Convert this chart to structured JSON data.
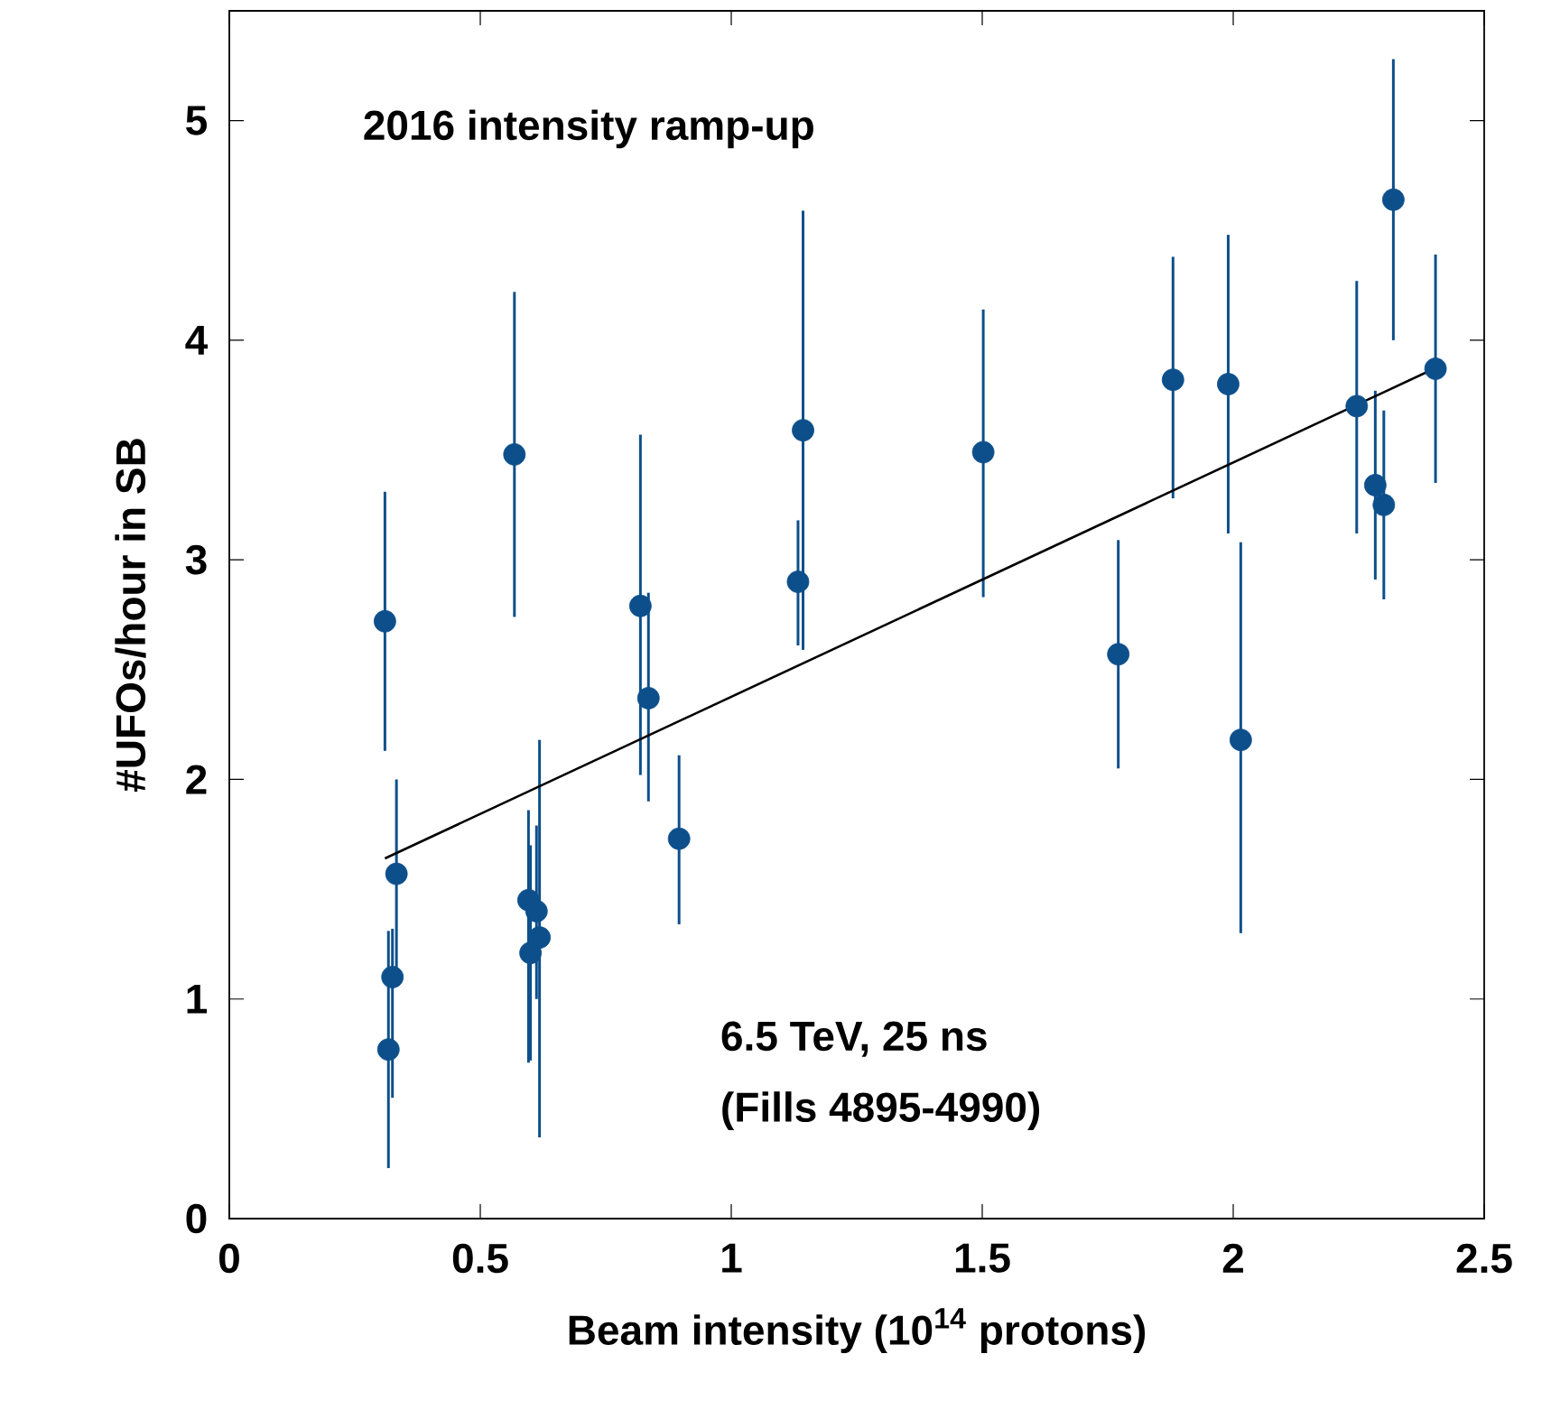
{
  "chart_data": {
    "type": "scatter",
    "xlabel": "Beam intensity (10$^{14}$ protons)",
    "ylabel": "#UFOs/hour in SB",
    "annotations": [
      "2016 intensity ramp-up",
      "6.5 TeV, 25 ns",
      "(Fills 4895-4990)"
    ],
    "xlim": [
      0,
      2.5
    ],
    "ylim": [
      0,
      5.5
    ],
    "xticks": [
      0,
      0.5,
      1,
      1.5,
      2,
      2.5
    ],
    "yticks": [
      0,
      1,
      2,
      3,
      4,
      5
    ],
    "grid": false,
    "series": [
      {
        "marker": "circle",
        "color": "#0d4f8b",
        "x": [
          0.31,
          0.333,
          0.325,
          0.317,
          0.568,
          0.596,
          0.6,
          0.612,
          0.618,
          0.819,
          0.835,
          0.896,
          1.133,
          1.143,
          1.502,
          1.771,
          1.88,
          1.99,
          2.015,
          2.246,
          2.283,
          2.3,
          2.319,
          2.403
        ],
        "values": [
          2.72,
          1.57,
          1.1,
          0.77,
          3.48,
          1.45,
          1.21,
          1.4,
          1.28,
          2.79,
          2.37,
          1.73,
          2.9,
          3.59,
          3.49,
          2.57,
          3.82,
          3.8,
          2.18,
          3.7,
          3.34,
          3.25,
          4.64,
          3.87
        ],
        "errors": [
          [
            2.13,
            3.31
          ],
          [
            1.14,
            2.0
          ],
          [
            0.55,
            1.32
          ],
          [
            0.23,
            1.31
          ],
          [
            2.74,
            4.22
          ],
          [
            0.71,
            1.86
          ],
          [
            0.72,
            1.7
          ],
          [
            1.0,
            1.79
          ],
          [
            0.37,
            2.18
          ],
          [
            2.02,
            3.57
          ],
          [
            1.9,
            2.85
          ],
          [
            1.34,
            2.11
          ],
          [
            2.61,
            3.18
          ],
          [
            2.59,
            4.59
          ],
          [
            2.83,
            4.14
          ],
          [
            2.05,
            3.09
          ],
          [
            3.28,
            4.38
          ],
          [
            3.12,
            4.48
          ],
          [
            1.3,
            3.08
          ],
          [
            3.12,
            4.27
          ],
          [
            2.91,
            3.77
          ],
          [
            2.82,
            3.68
          ],
          [
            4.0,
            5.28
          ],
          [
            3.35,
            4.39
          ]
        ]
      },
      {
        "type": "line",
        "color": "#000000",
        "marker": "none",
        "line_style": "solid",
        "x": [
          0.31,
          2.4
        ],
        "values": [
          1.64,
          3.87
        ]
      }
    ]
  }
}
